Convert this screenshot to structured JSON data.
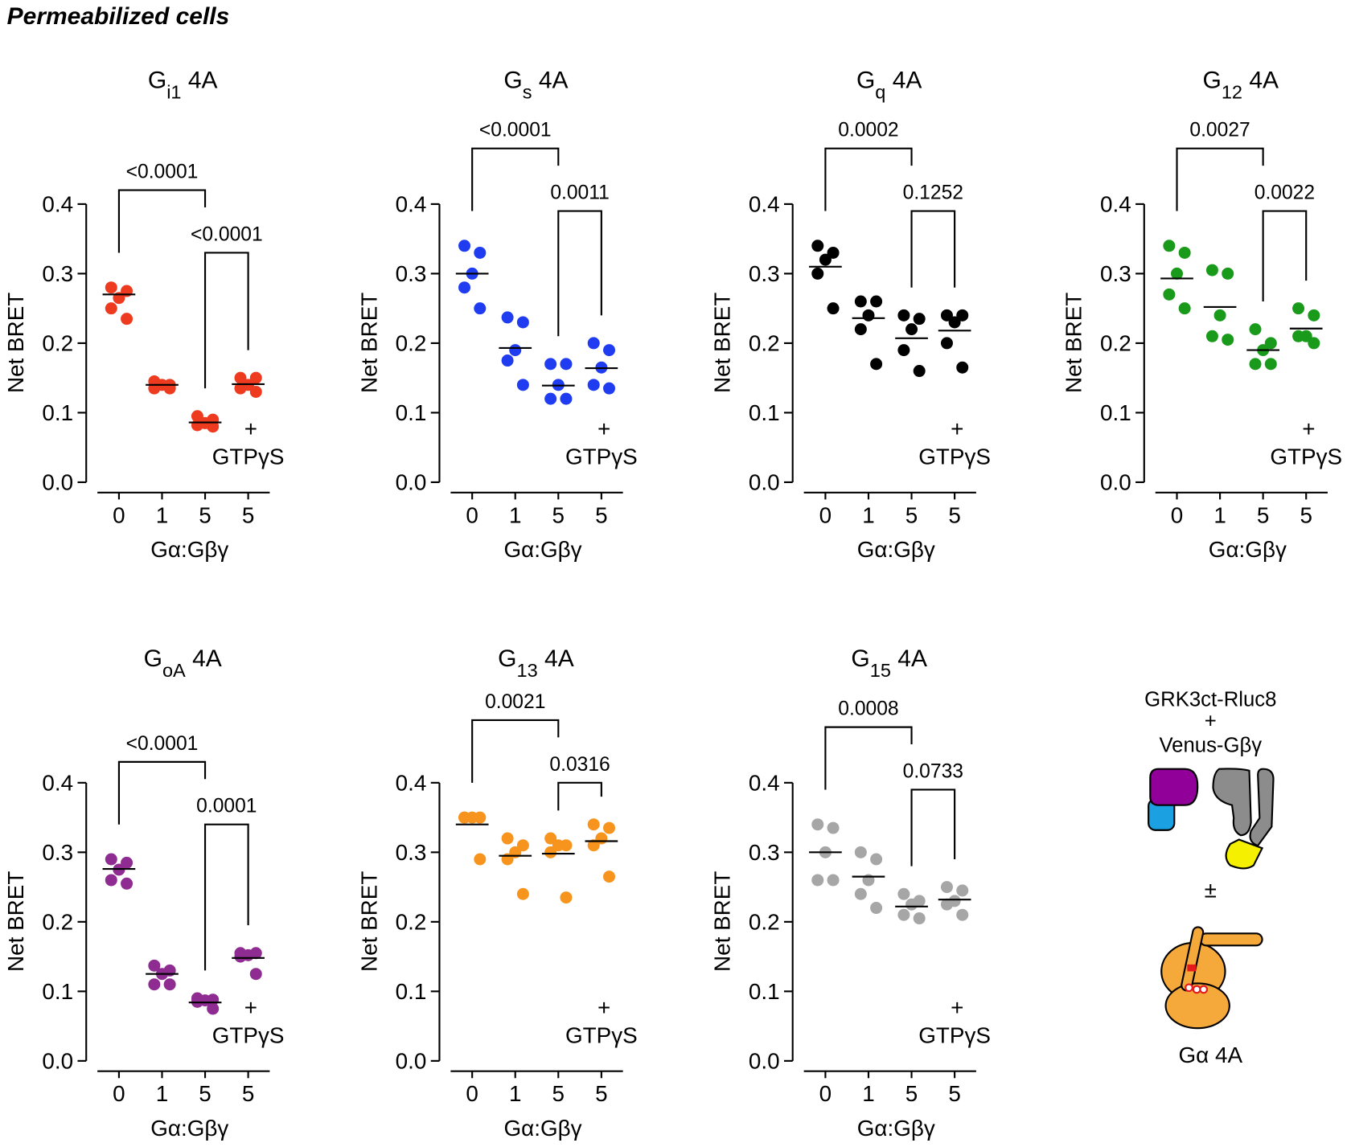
{
  "title": "Permeabilized cells",
  "diagram": {
    "labels": [
      "GRK3ct-Rluc8",
      "+",
      "Venus-Gβγ",
      "±",
      "Gα 4A"
    ]
  },
  "chart_data": [
    {
      "type": "dot",
      "title": [
        "G",
        "i1",
        " 4A"
      ],
      "categories": [
        "0",
        "1",
        "5",
        "5"
      ],
      "x_label": "Gα:Gβγ",
      "y_label": "Net BRET",
      "color": "#ee3b1f",
      "values": [
        [
          0.28,
          0.275,
          0.265,
          0.25,
          0.235
        ],
        [
          0.145,
          0.14,
          0.14,
          0.135,
          0.135
        ],
        [
          0.095,
          0.09,
          0.085,
          0.082,
          0.08
        ],
        [
          0.15,
          0.15,
          0.14,
          0.135,
          0.13
        ]
      ],
      "means": [
        0.27,
        0.14,
        0.086,
        0.141
      ],
      "ylim": [
        0,
        0.4
      ],
      "yticks": [
        {
          "value": 0,
          "label": "0.0"
        },
        0.1,
        0.2,
        0.3,
        0.4
      ],
      "annotations": [
        "+",
        "GTPγS"
      ],
      "comparisons": [
        {
          "from": 0,
          "to": 2,
          "label": "<0.0001"
        },
        {
          "from": 2,
          "to": 3,
          "label": "<0.0001"
        }
      ]
    },
    {
      "type": "dot",
      "title": [
        "G",
        "s",
        " 4A"
      ],
      "categories": [
        "0",
        "1",
        "5",
        "5"
      ],
      "x_label": "Gα:Gβγ",
      "y_label": "Net BRET",
      "color": "#1f3cf0",
      "values": [
        [
          0.34,
          0.33,
          0.3,
          0.28,
          0.25
        ],
        [
          0.237,
          0.23,
          0.19,
          0.175,
          0.14
        ],
        [
          0.17,
          0.17,
          0.14,
          0.12,
          0.12
        ],
        [
          0.2,
          0.19,
          0.165,
          0.14,
          0.135
        ]
      ],
      "means": [
        0.3,
        0.193,
        0.139,
        0.164
      ],
      "ylim": [
        0,
        0.4
      ],
      "yticks": [
        {
          "value": 0,
          "label": "0.0"
        },
        0.1,
        0.2,
        0.3,
        0.4
      ],
      "annotations": [
        "+",
        "GTPγS"
      ],
      "comparisons": [
        {
          "from": 0,
          "to": 2,
          "label": "<0.0001"
        },
        {
          "from": 2,
          "to": 3,
          "label": "0.0011"
        }
      ]
    },
    {
      "type": "dot",
      "title": [
        "G",
        "q",
        " 4A"
      ],
      "categories": [
        "0",
        "1",
        "5",
        "5"
      ],
      "x_label": "Gα:Gβγ",
      "y_label": "Net BRET",
      "color": "#000000",
      "values": [
        [
          0.34,
          0.33,
          0.32,
          0.3,
          0.25
        ],
        [
          0.26,
          0.26,
          0.24,
          0.22,
          0.17
        ],
        [
          0.24,
          0.235,
          0.22,
          0.19,
          0.16
        ],
        [
          0.24,
          0.24,
          0.23,
          0.2,
          0.165
        ]
      ],
      "means": [
        0.31,
        0.236,
        0.207,
        0.218
      ],
      "ylim": [
        0,
        0.4
      ],
      "yticks": [
        {
          "value": 0,
          "label": "0.0"
        },
        0.1,
        0.2,
        0.3,
        0.4
      ],
      "annotations": [
        "+",
        "GTPγS"
      ],
      "comparisons": [
        {
          "from": 0,
          "to": 2,
          "label": "0.0002"
        },
        {
          "from": 2,
          "to": 3,
          "label": "0.1252"
        }
      ]
    },
    {
      "type": "dot",
      "title": [
        "G",
        "12",
        " 4A"
      ],
      "categories": [
        "0",
        "1",
        "5",
        "5"
      ],
      "x_label": "Gα:Gβγ",
      "y_label": "Net BRET",
      "color": "#1a9a1a",
      "values": [
        [
          0.34,
          0.33,
          0.3,
          0.27,
          0.25
        ],
        [
          0.305,
          0.3,
          0.24,
          0.21,
          0.205
        ],
        [
          0.22,
          0.2,
          0.19,
          0.17,
          0.17
        ],
        [
          0.25,
          0.24,
          0.21,
          0.21,
          0.2
        ]
      ],
      "means": [
        0.293,
        0.252,
        0.19,
        0.221
      ],
      "ylim": [
        0,
        0.4
      ],
      "yticks": [
        {
          "value": 0,
          "label": "0.0"
        },
        0.1,
        0.2,
        0.3,
        0.4
      ],
      "annotations": [
        "+",
        "GTPγS"
      ],
      "comparisons": [
        {
          "from": 0,
          "to": 2,
          "label": "0.0027"
        },
        {
          "from": 2,
          "to": 3,
          "label": "0.0022"
        }
      ]
    },
    {
      "type": "dot",
      "title": [
        "G",
        "oA",
        " 4A"
      ],
      "categories": [
        "0",
        "1",
        "5",
        "5"
      ],
      "x_label": "Gα:Gβγ",
      "y_label": "Net BRET",
      "color": "#8e2c91",
      "values": [
        [
          0.29,
          0.285,
          0.275,
          0.26,
          0.255
        ],
        [
          0.137,
          0.13,
          0.125,
          0.11,
          0.11
        ],
        [
          0.09,
          0.088,
          0.087,
          0.085,
          0.075
        ],
        [
          0.155,
          0.155,
          0.152,
          0.15,
          0.125
        ]
      ],
      "means": [
        0.276,
        0.125,
        0.084,
        0.148
      ],
      "ylim": [
        0,
        0.4
      ],
      "yticks": [
        {
          "value": 0,
          "label": "0.0"
        },
        0.1,
        0.2,
        0.3,
        0.4
      ],
      "annotations": [
        "+",
        "GTPγS"
      ],
      "comparisons": [
        {
          "from": 0,
          "to": 2,
          "label": "<0.0001"
        },
        {
          "from": 2,
          "to": 3,
          "label": "0.0001"
        }
      ]
    },
    {
      "type": "dot",
      "title": [
        "G",
        "13",
        " 4A"
      ],
      "categories": [
        "0",
        "1",
        "5",
        "5"
      ],
      "x_label": "Gα:Gβγ",
      "y_label": "Net BRET",
      "color": "#f7941d",
      "values": [
        [
          0.35,
          0.35,
          0.35,
          0.35,
          0.29
        ],
        [
          0.32,
          0.31,
          0.3,
          0.29,
          0.24
        ],
        [
          0.32,
          0.31,
          0.31,
          0.3,
          0.235
        ],
        [
          0.34,
          0.335,
          0.32,
          0.31,
          0.265
        ]
      ],
      "means": [
        0.34,
        0.295,
        0.298,
        0.316
      ],
      "ylim": [
        0,
        0.4
      ],
      "yticks": [
        {
          "value": 0,
          "label": "0.0"
        },
        0.1,
        0.2,
        0.3,
        0.4
      ],
      "annotations": [
        "+",
        "GTPγS"
      ],
      "comparisons": [
        {
          "from": 0,
          "to": 2,
          "label": "0.0021"
        },
        {
          "from": 2,
          "to": 3,
          "label": "0.0316"
        }
      ]
    },
    {
      "type": "dot",
      "title": [
        "G",
        "15",
        " 4A"
      ],
      "categories": [
        "0",
        "1",
        "5",
        "5"
      ],
      "x_label": "Gα:Gβγ",
      "y_label": "Net BRET",
      "color": "#a6a6a6",
      "values": [
        [
          0.34,
          0.335,
          0.3,
          0.26,
          0.26
        ],
        [
          0.3,
          0.29,
          0.26,
          0.24,
          0.22
        ],
        [
          0.24,
          0.23,
          0.225,
          0.21,
          0.205
        ],
        [
          0.25,
          0.245,
          0.23,
          0.225,
          0.21
        ]
      ],
      "means": [
        0.3,
        0.265,
        0.222,
        0.232
      ],
      "ylim": [
        0,
        0.4
      ],
      "yticks": [
        {
          "value": 0,
          "label": "0.0"
        },
        0.1,
        0.2,
        0.3,
        0.4
      ],
      "annotations": [
        "+",
        "GTPγS"
      ],
      "comparisons": [
        {
          "from": 0,
          "to": 2,
          "label": "0.0008"
        },
        {
          "from": 2,
          "to": 3,
          "label": "0.0733"
        }
      ]
    }
  ]
}
